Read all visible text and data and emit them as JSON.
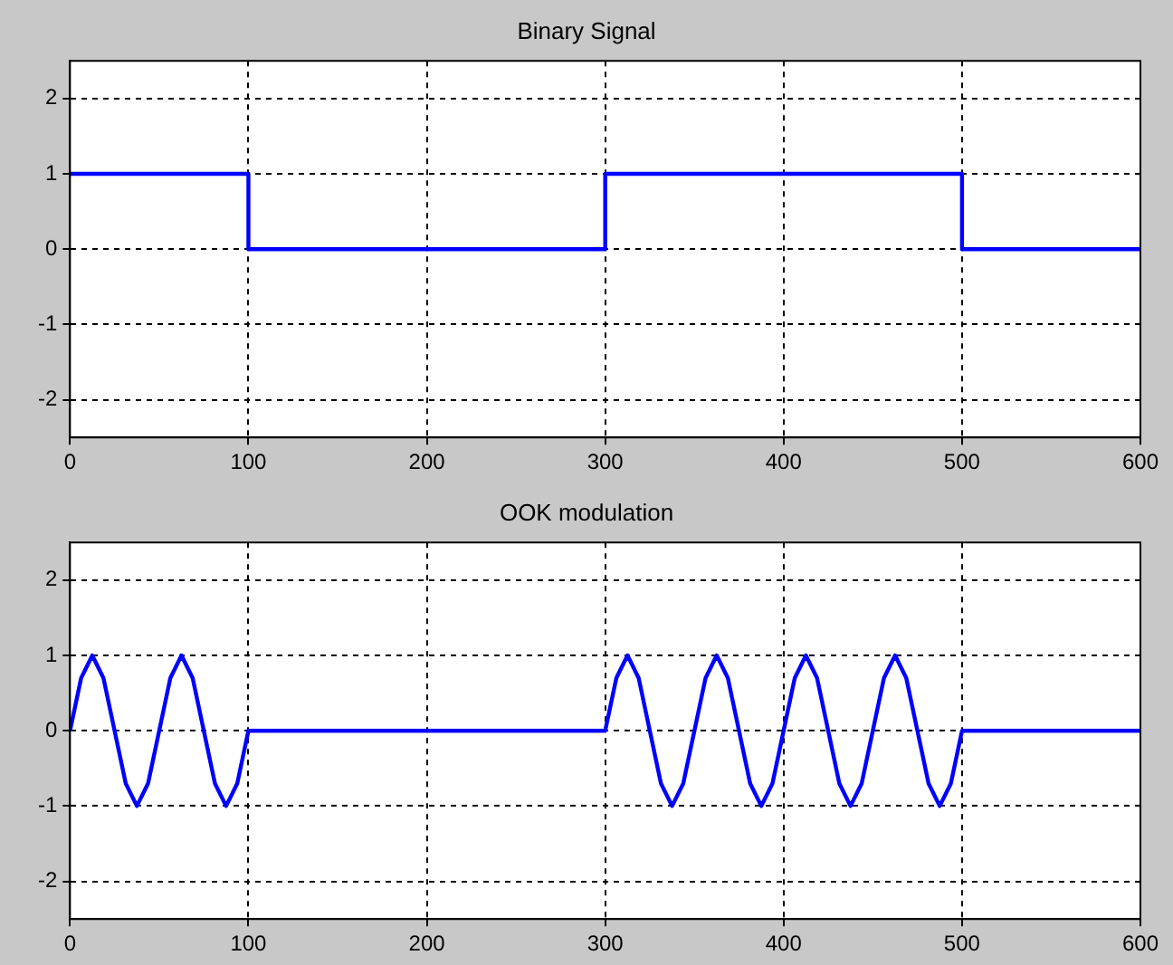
{
  "chart_data": [
    {
      "type": "step",
      "title": "Binary Signal",
      "x": [
        0,
        100,
        300,
        500,
        600
      ],
      "series": [
        {
          "color": "#0000ff",
          "values": [
            1,
            0,
            1,
            0,
            0
          ]
        }
      ],
      "xlim": [
        0,
        600
      ],
      "xticks": [
        0,
        100,
        200,
        300,
        400,
        500,
        600
      ],
      "ylim": [
        -2.5,
        2.5
      ],
      "yticks": [
        -2,
        -1,
        0,
        1,
        2
      ],
      "grid": true,
      "line_style": "solid",
      "marker": "none"
    },
    {
      "type": "line",
      "title": "OOK modulation",
      "x": [
        0,
        6.25,
        12.5,
        18.75,
        25,
        31.25,
        37.5,
        43.75,
        50,
        56.25,
        62.5,
        68.75,
        75,
        81.25,
        87.5,
        93.75,
        100,
        300,
        306.25,
        312.5,
        318.75,
        325,
        331.25,
        337.5,
        343.75,
        350,
        356.25,
        362.5,
        368.75,
        375,
        381.25,
        387.5,
        393.75,
        400,
        406.25,
        412.5,
        418.75,
        425,
        431.25,
        437.5,
        443.75,
        450,
        456.25,
        462.5,
        468.75,
        475,
        481.25,
        487.5,
        493.75,
        500,
        600
      ],
      "series": [
        {
          "color": "#0000ff",
          "values": [
            0,
            0.7,
            1,
            0.7,
            0,
            -0.7,
            -1,
            -0.7,
            0,
            0.7,
            1,
            0.7,
            0,
            -0.7,
            -1,
            -0.7,
            0,
            0,
            0.7,
            1,
            0.7,
            0,
            -0.7,
            -1,
            -0.7,
            0,
            0.7,
            1,
            0.7,
            0,
            -0.7,
            -1,
            -0.7,
            0,
            0.7,
            1,
            0.7,
            0,
            -0.7,
            -1,
            -0.7,
            0,
            0.7,
            1,
            0.7,
            0,
            -0.7,
            -1,
            -0.7,
            0,
            0
          ]
        }
      ],
      "xlim": [
        0,
        600
      ],
      "xticks": [
        0,
        100,
        200,
        300,
        400,
        500,
        600
      ],
      "ylim": [
        -2.5,
        2.5
      ],
      "yticks": [
        -2,
        -1,
        0,
        1,
        2
      ],
      "grid": true,
      "line_style": "solid",
      "marker": "none"
    }
  ]
}
